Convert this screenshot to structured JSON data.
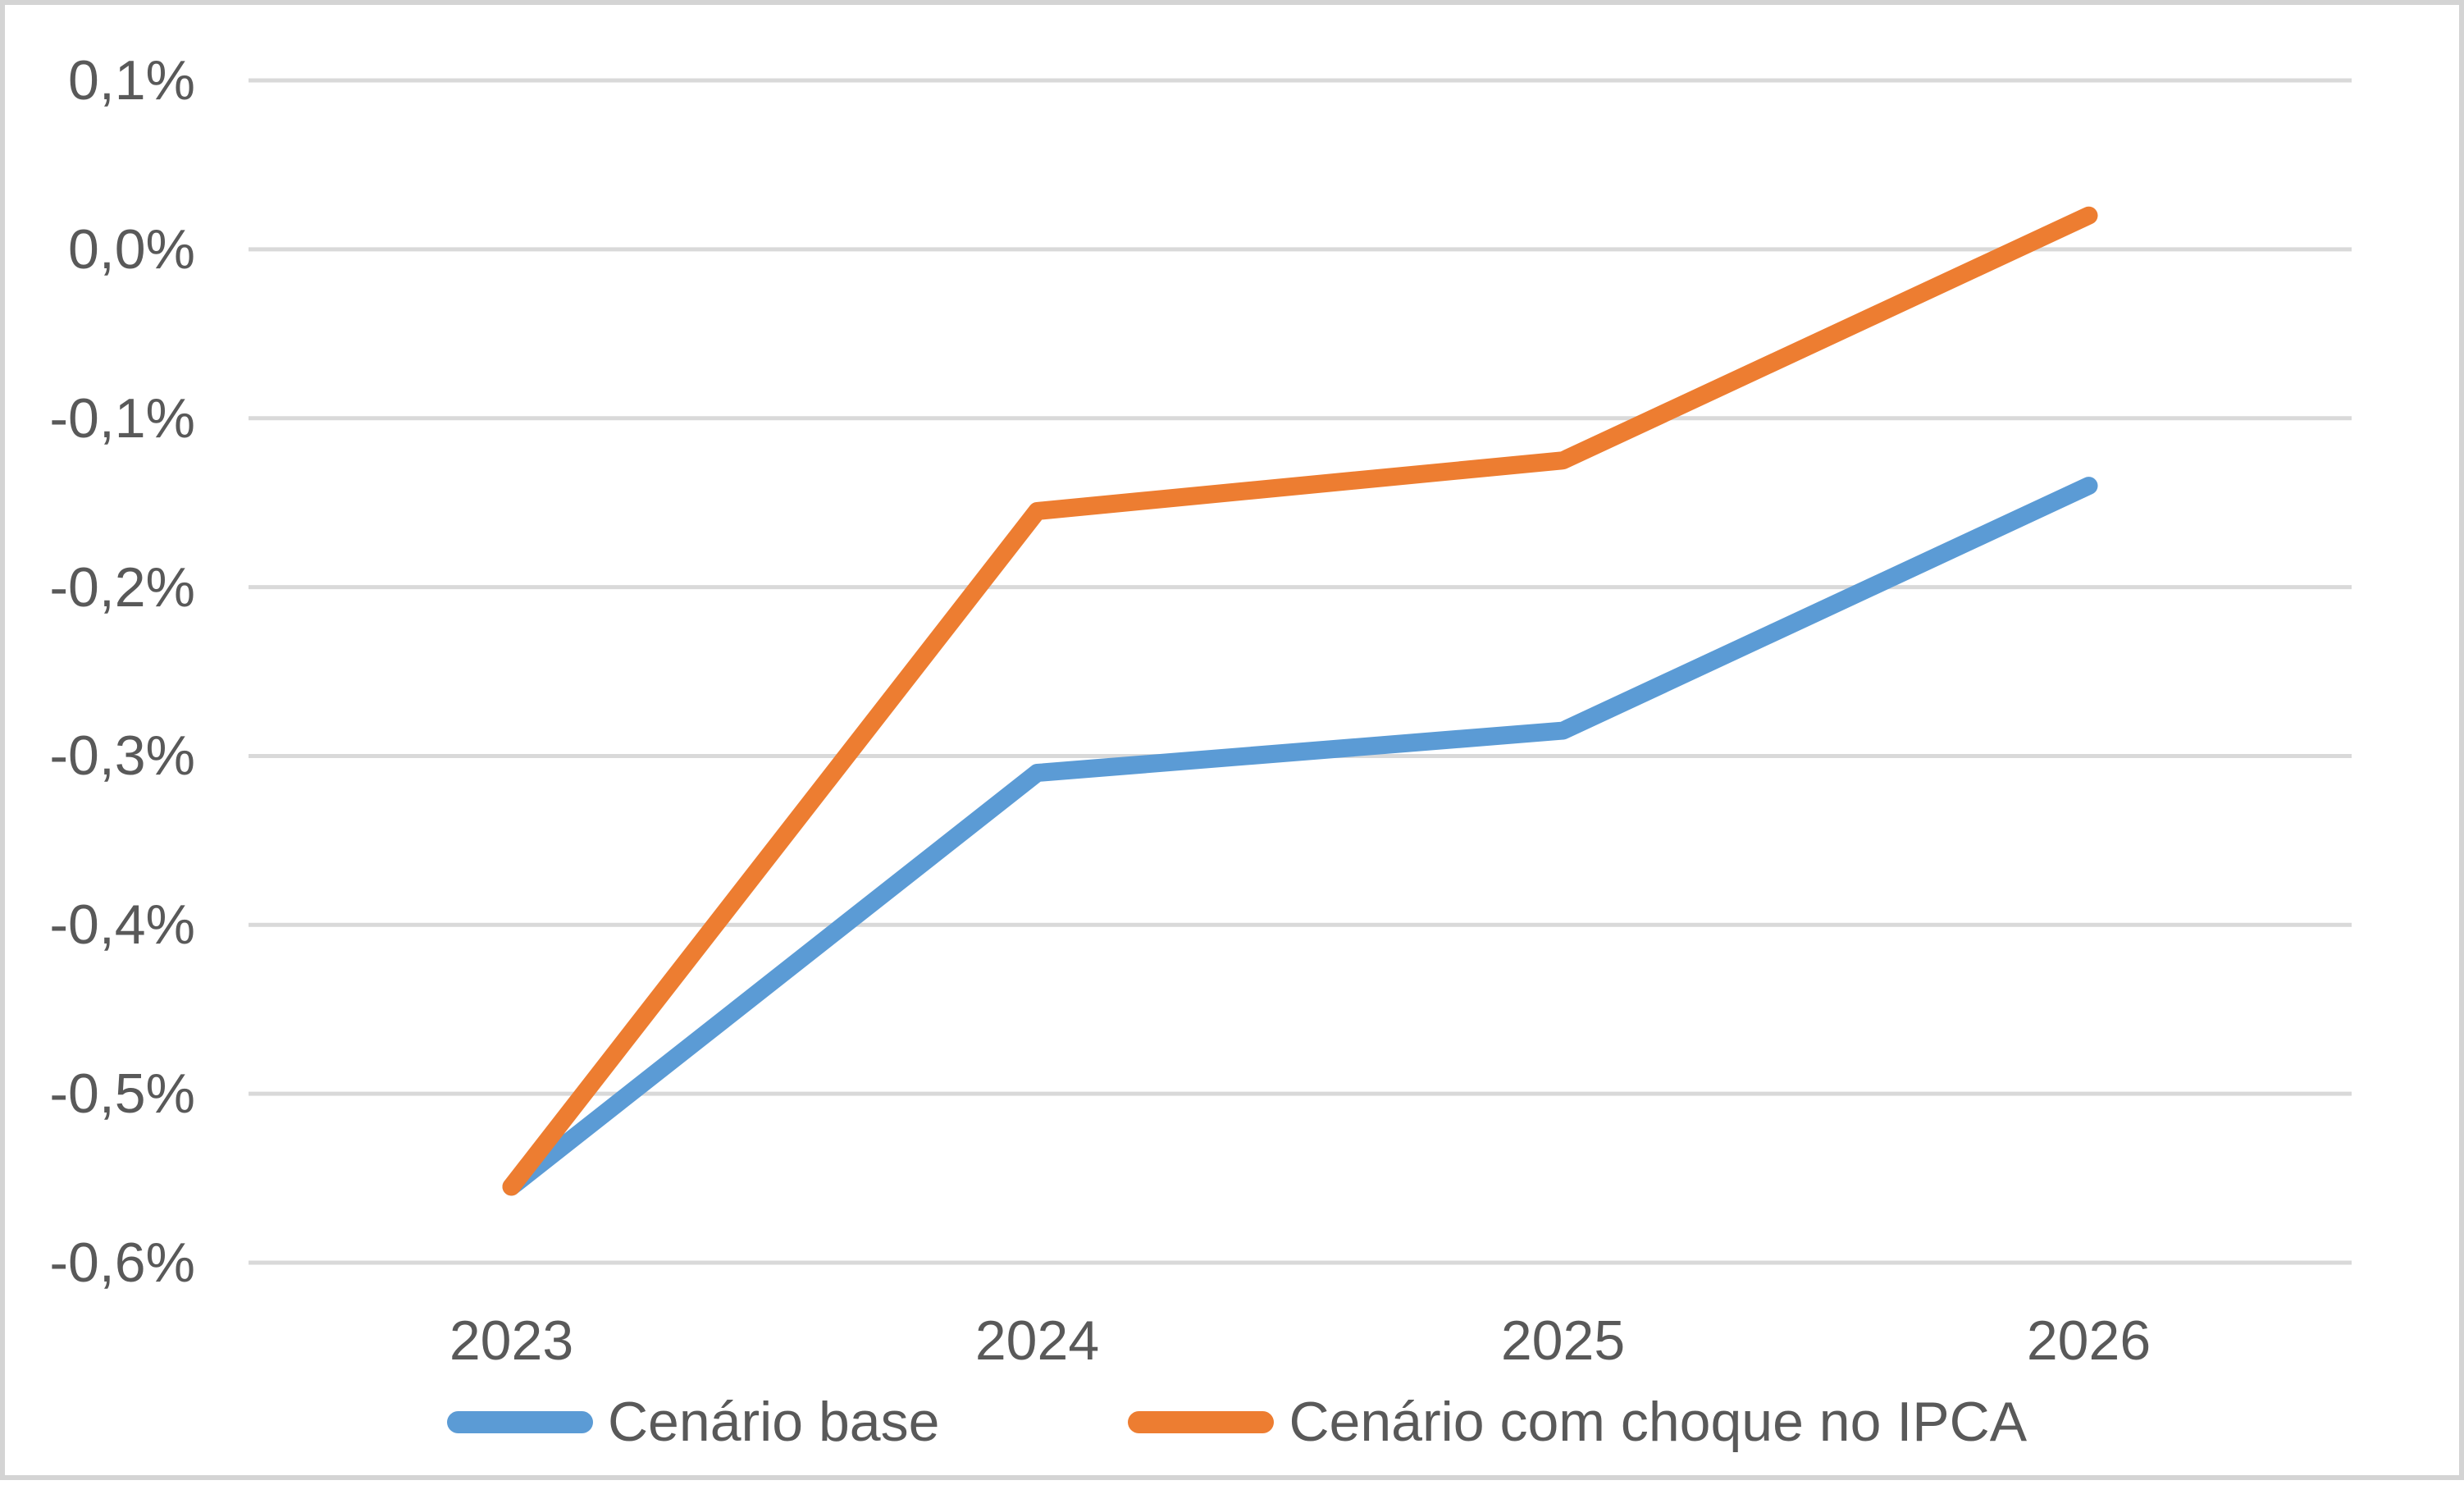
{
  "chart_data": {
    "type": "line",
    "categories": [
      "2023",
      "2024",
      "2025",
      "2026"
    ],
    "series": [
      {
        "name": "Cenário base",
        "color": "#5B9BD5",
        "values": [
          -0.555,
          -0.31,
          -0.285,
          -0.14
        ]
      },
      {
        "name": "Cenário com choque no IPCA",
        "color": "#ED7D31",
        "values": [
          -0.555,
          -0.155,
          -0.125,
          0.02
        ]
      }
    ],
    "title": "",
    "xlabel": "",
    "ylabel": "",
    "y_axis": {
      "min": -0.6,
      "max": 0.1,
      "step": 0.1,
      "tick_values": [
        0.1,
        0.0,
        -0.1,
        -0.2,
        -0.3,
        -0.4,
        -0.5,
        -0.6
      ],
      "tick_labels": [
        "0,1%",
        "0,0%",
        "-0,1%",
        "-0,2%",
        "-0,3%",
        "-0,4%",
        "-0,5%",
        "-0,6%"
      ]
    },
    "grid": true,
    "legend_position": "bottom",
    "colors": {
      "gridline": "#D9D9D9",
      "text": "#595959",
      "border": "#D4D4D4",
      "background": "#FFFFFF"
    }
  },
  "legend": {
    "items": [
      {
        "label": "Cenário base",
        "color": "#5B9BD5"
      },
      {
        "label": "Cenário com choque no IPCA",
        "color": "#ED7D31"
      }
    ]
  }
}
